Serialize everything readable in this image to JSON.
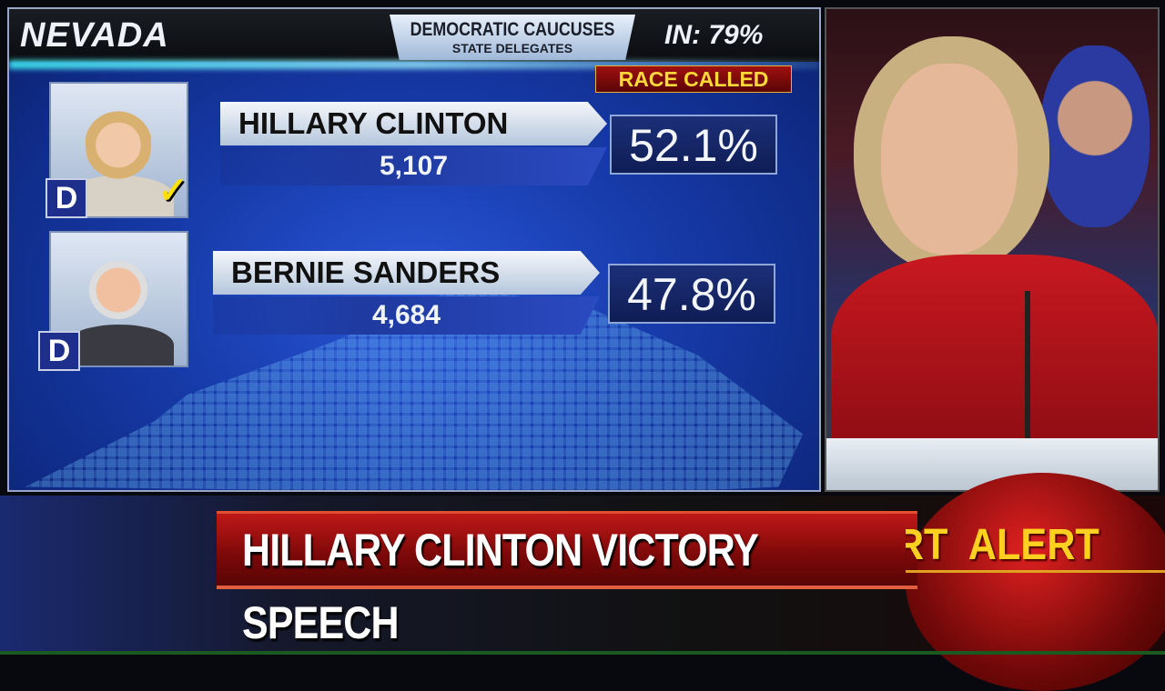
{
  "board": {
    "state": "NEVADA",
    "race_line1": "DEMOCRATIC CAUCUSES",
    "race_line2": "STATE DELEGATES",
    "reporting": "IN: 79%",
    "status": "RACE CALLED",
    "candidates": [
      {
        "name": "HILLARY CLINTON",
        "votes": "5,107",
        "percent": "52.1%",
        "party": "D",
        "winner": true,
        "check": "✓"
      },
      {
        "name": "BERNIE SANDERS",
        "votes": "4,684",
        "percent": "47.8%",
        "party": "D",
        "winner": false
      }
    ]
  },
  "headline": "HILLARY CLINTON VICTORY SPEECH",
  "alert_ticker": "ERT  ALERT",
  "colors": {
    "board_blue": "#163aa8",
    "headline_red": "#a01010",
    "alert_yellow": "#ffd020"
  }
}
